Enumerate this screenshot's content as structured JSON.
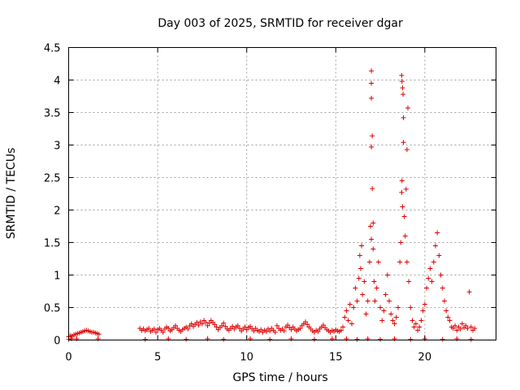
{
  "chart_data": {
    "type": "scatter",
    "title": "Day 003 of 2025, SRMTID for receiver dgar",
    "xlabel": "GPS time / hours",
    "ylabel": "SRMTID / TECUs",
    "xlim": [
      0,
      24
    ],
    "ylim": [
      0,
      4.5
    ],
    "xticks": [
      0,
      5,
      10,
      15,
      20
    ],
    "yticks": [
      0,
      0.5,
      1,
      1.5,
      2,
      2.5,
      3,
      3.5,
      4,
      4.5
    ],
    "xtick_labels": [
      "0",
      "5",
      "10",
      "15",
      "20"
    ],
    "ytick_labels": [
      "0",
      "0.5",
      "1",
      "1.5",
      "2",
      "2.5",
      "3",
      "3.5",
      "4",
      "4.5"
    ],
    "grid": true,
    "marker": "plus",
    "color": "#e00000",
    "series": [
      {
        "name": "SRMTID",
        "points": [
          [
            0.0,
            0.05
          ],
          [
            0.1,
            0.07
          ],
          [
            0.2,
            0.06
          ],
          [
            0.3,
            0.08
          ],
          [
            0.4,
            0.09
          ],
          [
            0.5,
            0.1
          ],
          [
            0.6,
            0.11
          ],
          [
            0.7,
            0.12
          ],
          [
            0.8,
            0.13
          ],
          [
            0.9,
            0.14
          ],
          [
            1.0,
            0.15
          ],
          [
            1.1,
            0.14
          ],
          [
            1.2,
            0.13
          ],
          [
            1.3,
            0.12
          ],
          [
            1.4,
            0.12
          ],
          [
            1.5,
            0.11
          ],
          [
            1.6,
            0.1
          ],
          [
            1.7,
            0.09
          ],
          [
            0.15,
            0.02
          ],
          [
            0.45,
            0.02
          ],
          [
            1.65,
            0.02
          ],
          [
            0.0,
            0.01
          ],
          [
            4.0,
            0.18
          ],
          [
            4.1,
            0.15
          ],
          [
            4.2,
            0.17
          ],
          [
            4.3,
            0.14
          ],
          [
            4.4,
            0.16
          ],
          [
            4.5,
            0.18
          ],
          [
            4.6,
            0.13
          ],
          [
            4.7,
            0.15
          ],
          [
            4.8,
            0.17
          ],
          [
            4.9,
            0.12
          ],
          [
            5.0,
            0.16
          ],
          [
            5.1,
            0.18
          ],
          [
            5.2,
            0.15
          ],
          [
            5.3,
            0.12
          ],
          [
            5.4,
            0.17
          ],
          [
            5.5,
            0.2
          ],
          [
            5.6,
            0.18
          ],
          [
            5.7,
            0.14
          ],
          [
            5.8,
            0.16
          ],
          [
            5.9,
            0.19
          ],
          [
            6.0,
            0.22
          ],
          [
            6.1,
            0.18
          ],
          [
            6.2,
            0.15
          ],
          [
            6.3,
            0.13
          ],
          [
            6.4,
            0.16
          ],
          [
            6.5,
            0.18
          ],
          [
            6.6,
            0.2
          ],
          [
            6.7,
            0.17
          ],
          [
            6.8,
            0.22
          ],
          [
            6.9,
            0.25
          ],
          [
            7.0,
            0.21
          ],
          [
            7.1,
            0.24
          ],
          [
            7.2,
            0.27
          ],
          [
            7.3,
            0.23
          ],
          [
            7.4,
            0.28
          ],
          [
            7.5,
            0.25
          ],
          [
            7.6,
            0.3
          ],
          [
            7.7,
            0.27
          ],
          [
            7.8,
            0.22
          ],
          [
            7.9,
            0.26
          ],
          [
            8.0,
            0.3
          ],
          [
            8.1,
            0.27
          ],
          [
            8.2,
            0.24
          ],
          [
            8.3,
            0.2
          ],
          [
            8.4,
            0.16
          ],
          [
            8.5,
            0.19
          ],
          [
            8.6,
            0.22
          ],
          [
            8.7,
            0.26
          ],
          [
            8.8,
            0.21
          ],
          [
            8.9,
            0.17
          ],
          [
            9.0,
            0.15
          ],
          [
            9.1,
            0.18
          ],
          [
            9.2,
            0.21
          ],
          [
            9.3,
            0.17
          ],
          [
            9.4,
            0.2
          ],
          [
            9.5,
            0.22
          ],
          [
            9.6,
            0.18
          ],
          [
            9.7,
            0.14
          ],
          [
            9.8,
            0.17
          ],
          [
            9.9,
            0.2
          ],
          [
            10.0,
            0.16
          ],
          [
            10.1,
            0.19
          ],
          [
            10.2,
            0.21
          ],
          [
            10.3,
            0.17
          ],
          [
            10.4,
            0.14
          ],
          [
            10.5,
            0.18
          ],
          [
            10.6,
            0.15
          ],
          [
            10.7,
            0.13
          ],
          [
            10.8,
            0.16
          ],
          [
            10.9,
            0.12
          ],
          [
            11.0,
            0.15
          ],
          [
            11.1,
            0.13
          ],
          [
            11.2,
            0.17
          ],
          [
            11.3,
            0.14
          ],
          [
            11.4,
            0.18
          ],
          [
            11.5,
            0.15
          ],
          [
            11.6,
            0.12
          ],
          [
            11.7,
            0.22
          ],
          [
            11.8,
            0.18
          ],
          [
            11.9,
            0.15
          ],
          [
            12.0,
            0.17
          ],
          [
            12.1,
            0.14
          ],
          [
            12.2,
            0.2
          ],
          [
            12.3,
            0.23
          ],
          [
            12.4,
            0.19
          ],
          [
            12.5,
            0.16
          ],
          [
            12.6,
            0.2
          ],
          [
            12.7,
            0.17
          ],
          [
            12.8,
            0.14
          ],
          [
            12.9,
            0.16
          ],
          [
            13.0,
            0.18
          ],
          [
            13.1,
            0.22
          ],
          [
            13.2,
            0.25
          ],
          [
            13.3,
            0.28
          ],
          [
            13.4,
            0.24
          ],
          [
            13.5,
            0.2
          ],
          [
            13.6,
            0.17
          ],
          [
            13.7,
            0.14
          ],
          [
            13.8,
            0.12
          ],
          [
            13.9,
            0.15
          ],
          [
            14.0,
            0.13
          ],
          [
            14.1,
            0.17
          ],
          [
            14.2,
            0.2
          ],
          [
            14.3,
            0.23
          ],
          [
            14.4,
            0.19
          ],
          [
            14.5,
            0.16
          ],
          [
            14.6,
            0.14
          ],
          [
            14.7,
            0.12
          ],
          [
            14.8,
            0.15
          ],
          [
            14.9,
            0.13
          ],
          [
            15.0,
            0.16
          ],
          [
            15.1,
            0.14
          ],
          [
            15.2,
            0.13
          ],
          [
            15.3,
            0.15
          ],
          [
            4.3,
            0.01
          ],
          [
            5.6,
            0.02
          ],
          [
            6.6,
            0.01
          ],
          [
            7.8,
            0.02
          ],
          [
            8.7,
            0.01
          ],
          [
            10.2,
            0.02
          ],
          [
            11.3,
            0.01
          ],
          [
            12.5,
            0.02
          ],
          [
            13.8,
            0.01
          ],
          [
            14.8,
            0.02
          ],
          [
            15.4,
            0.2
          ],
          [
            15.5,
            0.35
          ],
          [
            15.6,
            0.45
          ],
          [
            15.7,
            0.3
          ],
          [
            15.8,
            0.55
          ],
          [
            15.9,
            0.25
          ],
          [
            16.0,
            0.5
          ],
          [
            16.1,
            0.8
          ],
          [
            16.2,
            0.6
          ],
          [
            16.3,
            0.95
          ],
          [
            16.35,
            1.3
          ],
          [
            16.4,
            1.1
          ],
          [
            16.45,
            1.45
          ],
          [
            16.5,
            0.7
          ],
          [
            16.6,
            0.9
          ],
          [
            16.7,
            0.4
          ],
          [
            16.8,
            0.6
          ],
          [
            16.9,
            1.2
          ],
          [
            16.95,
            1.75
          ],
          [
            17.0,
            1.55
          ],
          [
            17.0,
            4.14
          ],
          [
            17.0,
            3.95
          ],
          [
            17.0,
            3.72
          ],
          [
            17.05,
            3.14
          ],
          [
            17.0,
            2.97
          ],
          [
            17.05,
            2.33
          ],
          [
            17.1,
            1.8
          ],
          [
            17.1,
            1.4
          ],
          [
            17.15,
            0.9
          ],
          [
            17.2,
            0.6
          ],
          [
            17.3,
            0.8
          ],
          [
            17.4,
            1.2
          ],
          [
            17.5,
            0.5
          ],
          [
            17.6,
            0.3
          ],
          [
            17.7,
            0.45
          ],
          [
            17.8,
            0.7
          ],
          [
            17.9,
            1.0
          ],
          [
            18.0,
            0.6
          ],
          [
            18.1,
            0.4
          ],
          [
            18.2,
            0.3
          ],
          [
            18.3,
            0.25
          ],
          [
            18.4,
            0.35
          ],
          [
            18.5,
            0.5
          ],
          [
            18.6,
            1.2
          ],
          [
            18.65,
            1.5
          ],
          [
            18.7,
            2.27
          ],
          [
            18.72,
            2.45
          ],
          [
            18.75,
            2.05
          ],
          [
            18.7,
            4.07
          ],
          [
            18.72,
            3.98
          ],
          [
            18.75,
            3.88
          ],
          [
            18.78,
            3.78
          ],
          [
            18.8,
            3.42
          ],
          [
            18.8,
            3.04
          ],
          [
            18.85,
            1.9
          ],
          [
            18.9,
            1.6
          ],
          [
            18.95,
            2.32
          ],
          [
            19.0,
            2.93
          ],
          [
            19.05,
            3.57
          ],
          [
            19.0,
            1.2
          ],
          [
            19.1,
            0.9
          ],
          [
            19.2,
            0.5
          ],
          [
            19.3,
            0.3
          ],
          [
            19.4,
            0.2
          ],
          [
            19.5,
            0.25
          ],
          [
            19.6,
            0.15
          ],
          [
            19.7,
            0.2
          ],
          [
            19.8,
            0.3
          ],
          [
            19.9,
            0.45
          ],
          [
            20.0,
            0.55
          ],
          [
            20.1,
            0.8
          ],
          [
            20.2,
            0.95
          ],
          [
            20.3,
            1.1
          ],
          [
            20.4,
            0.9
          ],
          [
            20.5,
            1.2
          ],
          [
            20.6,
            1.45
          ],
          [
            20.7,
            1.65
          ],
          [
            20.8,
            1.3
          ],
          [
            20.9,
            1.0
          ],
          [
            21.0,
            0.8
          ],
          [
            21.1,
            0.6
          ],
          [
            21.2,
            0.45
          ],
          [
            21.3,
            0.35
          ],
          [
            21.4,
            0.3
          ],
          [
            21.5,
            0.2
          ],
          [
            21.6,
            0.18
          ],
          [
            21.7,
            0.22
          ],
          [
            21.8,
            0.15
          ],
          [
            21.9,
            0.2
          ],
          [
            22.0,
            0.17
          ],
          [
            22.1,
            0.25
          ],
          [
            22.2,
            0.19
          ],
          [
            22.3,
            0.22
          ],
          [
            22.4,
            0.18
          ],
          [
            22.5,
            0.74
          ],
          [
            22.6,
            0.2
          ],
          [
            22.7,
            0.15
          ],
          [
            22.8,
            0.18
          ],
          [
            15.6,
            0.02
          ],
          [
            16.2,
            0.01
          ],
          [
            16.8,
            0.02
          ],
          [
            17.5,
            0.01
          ],
          [
            18.3,
            0.02
          ],
          [
            19.2,
            0.01
          ],
          [
            20.0,
            0.02
          ],
          [
            21.0,
            0.01
          ],
          [
            21.8,
            0.02
          ],
          [
            22.6,
            0.01
          ]
        ]
      }
    ]
  }
}
